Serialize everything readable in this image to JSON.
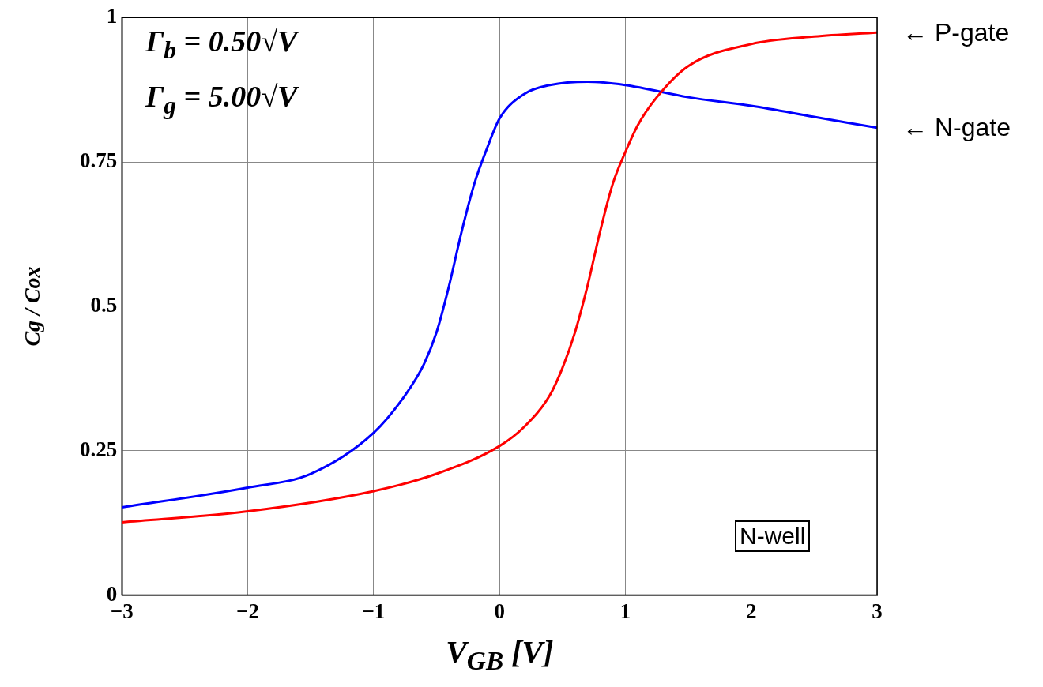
{
  "chart_data": {
    "type": "line",
    "xlabel": "V$_{GB}$  [V]",
    "ylabel": "Cg / Cox",
    "xlim": [
      -3,
      3
    ],
    "xticks": [
      {
        "value": -3,
        "label": "−3"
      },
      {
        "value": -2,
        "label": "−2"
      },
      {
        "value": -1,
        "label": "−1"
      },
      0,
      1,
      2,
      3
    ],
    "ylim": [
      0,
      1
    ],
    "yticks": [
      0,
      0.25,
      0.5,
      0.75,
      1
    ],
    "grid": true,
    "legend": false,
    "marker": "none",
    "line_style": "solid",
    "annotations": [
      "Γ$_{b}$ = 0.50√V",
      "Γ$_{g}$ = 5.00√V",
      "N-well"
    ],
    "series": [
      {
        "name": "← P-gate",
        "color": "#ff0000",
        "x": [
          -3,
          -2,
          -1,
          -0.5,
          0,
          0.2,
          0.4,
          0.5,
          0.6,
          0.7,
          0.8,
          0.9,
          1,
          1.1,
          1.25,
          1.5,
          2,
          2.5,
          3
        ],
        "values": [
          0.126,
          0.145,
          0.18,
          0.21,
          0.258,
          0.292,
          0.346,
          0.393,
          0.455,
          0.536,
          0.63,
          0.712,
          0.767,
          0.814,
          0.862,
          0.916,
          0.954,
          0.967,
          0.974
        ]
      },
      {
        "name": "← N-gate",
        "color": "#0000ff",
        "x": [
          -3,
          -2,
          -1.5,
          -1,
          -0.75,
          -0.6,
          -0.5,
          -0.4,
          -0.3,
          -0.2,
          -0.1,
          0,
          0.2,
          0.4,
          0.7,
          1,
          1.5,
          2,
          2.5,
          3
        ],
        "values": [
          0.152,
          0.186,
          0.21,
          0.281,
          0.346,
          0.4,
          0.455,
          0.536,
          0.63,
          0.712,
          0.773,
          0.825,
          0.868,
          0.883,
          0.889,
          0.883,
          0.862,
          0.847,
          0.828,
          0.809
        ]
      }
    ]
  }
}
